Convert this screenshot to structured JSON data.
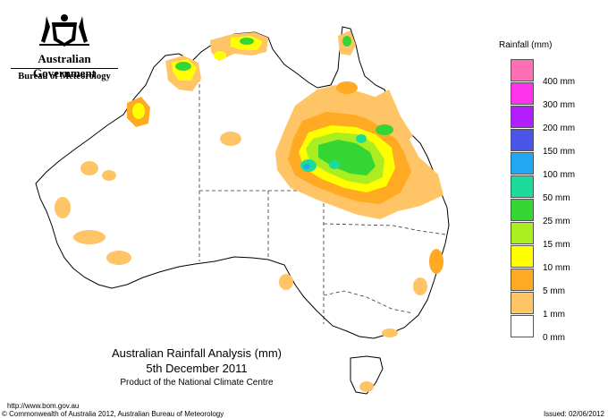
{
  "header": {
    "org": "Australian Government",
    "agency": "Bureau of Meteorology"
  },
  "legend": {
    "title": "Rainfall (mm)",
    "classes": [
      {
        "label": "",
        "color": "#ff6fb5"
      },
      {
        "label": "400 mm",
        "color": "#ff33ee"
      },
      {
        "label": "300 mm",
        "color": "#b21fff"
      },
      {
        "label": "200 mm",
        "color": "#4a56e8"
      },
      {
        "label": "150 mm",
        "color": "#22a8f2"
      },
      {
        "label": "100 mm",
        "color": "#1ddc9a"
      },
      {
        "label": "50 mm",
        "color": "#33d633"
      },
      {
        "label": "25 mm",
        "color": "#aaee22"
      },
      {
        "label": "15 mm",
        "color": "#ffff00"
      },
      {
        "label": "10 mm",
        "color": "#ffaa22"
      },
      {
        "label": "5 mm",
        "color": "#ffc466"
      },
      {
        "label": "1 mm",
        "color": "#ffffff"
      },
      {
        "label": "0 mm",
        "color": ""
      }
    ]
  },
  "map_title": {
    "line1": "Australian Rainfall Analysis (mm)",
    "line2": "5th December 2011",
    "line3": "Product of the National Climate Centre"
  },
  "footer": {
    "url": "http://www.bom.gov.au",
    "copyright": "© Commonwealth of Australia 2012, Australian Bureau of Meteorology",
    "issued": "Issued: 02/06/2012"
  }
}
